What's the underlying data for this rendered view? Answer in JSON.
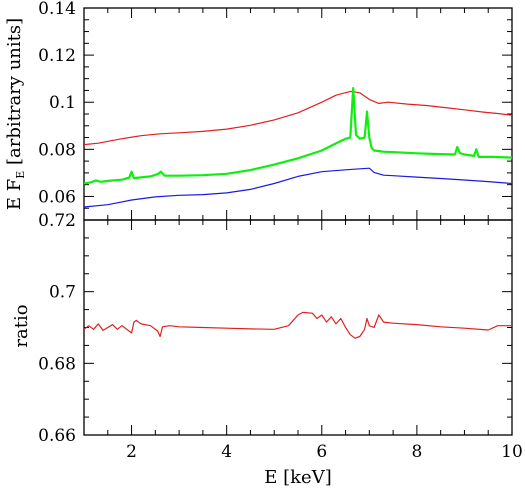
{
  "chart_data": [
    {
      "type": "line",
      "panel": "top",
      "ylabel": {
        "pre": "E F",
        "sub": "E",
        "post": " [arbitrary units]"
      },
      "xlim": [
        1,
        10
      ],
      "ylim": [
        0.05,
        0.14
      ],
      "yticks": [
        0.06,
        0.08,
        0.1,
        0.12,
        0.14
      ],
      "yticklabels": [
        "0.06",
        "0.08",
        "0.1",
        "0.12",
        "0.14"
      ],
      "series": [
        {
          "color": "#e02020",
          "x": [
            1,
            1.3,
            1.8,
            2.2,
            2.6,
            3,
            3.5,
            4,
            4.5,
            5,
            5.5,
            6,
            6.3,
            6.6,
            6.8,
            7,
            7.2,
            7.4,
            7.8,
            8.2,
            8.6,
            9,
            9.4,
            9.7,
            10
          ],
          "y": [
            0.082,
            0.0826,
            0.0845,
            0.0858,
            0.0866,
            0.087,
            0.0876,
            0.0886,
            0.0902,
            0.0925,
            0.0955,
            0.1,
            0.103,
            0.1046,
            0.104,
            0.1012,
            0.0995,
            0.1,
            0.0992,
            0.0986,
            0.0977,
            0.0968,
            0.0958,
            0.0952,
            0.0945
          ]
        },
        {
          "color": "#10ee10",
          "x": [
            1,
            1.15,
            1.25,
            1.35,
            1.5,
            1.8,
            1.95,
            2,
            2.05,
            2.4,
            2.55,
            2.62,
            2.7,
            3,
            3.5,
            4,
            4.5,
            5,
            5.5,
            6,
            6.3,
            6.5,
            6.6,
            6.66,
            6.72,
            6.8,
            6.9,
            6.95,
            7,
            7.05,
            7.1,
            7.3,
            7.6,
            8,
            8.4,
            8.8,
            8.85,
            8.9,
            9,
            9.2,
            9.25,
            9.3,
            9.6,
            10
          ],
          "y": [
            0.0655,
            0.066,
            0.0668,
            0.0662,
            0.0666,
            0.0671,
            0.068,
            0.0705,
            0.0678,
            0.0685,
            0.0695,
            0.0705,
            0.0688,
            0.0688,
            0.069,
            0.0696,
            0.0712,
            0.0735,
            0.0762,
            0.0795,
            0.0825,
            0.0845,
            0.085,
            0.106,
            0.0862,
            0.0845,
            0.085,
            0.096,
            0.085,
            0.0805,
            0.0795,
            0.079,
            0.0787,
            0.0783,
            0.078,
            0.0778,
            0.081,
            0.0785,
            0.0778,
            0.0772,
            0.08,
            0.0768,
            0.0768,
            0.0765
          ]
        },
        {
          "color": "#1a1ae0",
          "x": [
            1,
            1.5,
            2,
            2.5,
            3,
            3.5,
            4,
            4.5,
            5,
            5.5,
            6,
            6.5,
            7,
            7.1,
            7.3,
            7.5,
            8,
            8.5,
            9,
            9.5,
            10
          ],
          "y": [
            0.0555,
            0.0565,
            0.0585,
            0.0598,
            0.0605,
            0.0608,
            0.0615,
            0.063,
            0.0655,
            0.0685,
            0.0705,
            0.0713,
            0.072,
            0.0702,
            0.069,
            0.0688,
            0.0682,
            0.0676,
            0.067,
            0.0663,
            0.0655
          ]
        }
      ]
    },
    {
      "type": "line",
      "panel": "bottom",
      "xlabel": "E [keV]",
      "ylabel": "ratio",
      "xlim": [
        1,
        10
      ],
      "ylim": [
        0.66,
        0.72
      ],
      "xticks": [
        2,
        4,
        6,
        8,
        10
      ],
      "xticklabels": [
        "2",
        "4",
        "6",
        "8",
        "10"
      ],
      "yticks": [
        0.66,
        0.68,
        0.7,
        0.72
      ],
      "yticklabels": [
        "0.66",
        "0.68",
        "0.7",
        "0.72"
      ],
      "series": [
        {
          "color": "#e02020",
          "x": [
            1,
            1.1,
            1.2,
            1.3,
            1.4,
            1.5,
            1.6,
            1.7,
            1.8,
            1.9,
            2,
            2.05,
            2.1,
            2.2,
            2.4,
            2.55,
            2.6,
            2.65,
            2.8,
            3,
            3.5,
            4,
            4.5,
            5,
            5.3,
            5.5,
            5.6,
            5.8,
            5.9,
            6,
            6.1,
            6.2,
            6.3,
            6.4,
            6.5,
            6.6,
            6.7,
            6.8,
            6.9,
            6.95,
            7,
            7.1,
            7.2,
            7.3,
            7.5,
            8,
            8.5,
            9,
            9.5,
            9.7,
            10
          ],
          "y": [
            0.6895,
            0.6905,
            0.6895,
            0.691,
            0.6892,
            0.69,
            0.6908,
            0.6895,
            0.6905,
            0.6895,
            0.6885,
            0.6915,
            0.692,
            0.691,
            0.6905,
            0.689,
            0.6875,
            0.6902,
            0.6905,
            0.6902,
            0.69,
            0.6898,
            0.6896,
            0.6895,
            0.6905,
            0.6935,
            0.6942,
            0.694,
            0.6925,
            0.6935,
            0.6915,
            0.693,
            0.691,
            0.6925,
            0.69,
            0.688,
            0.687,
            0.6875,
            0.6895,
            0.6925,
            0.6905,
            0.69,
            0.6935,
            0.6915,
            0.6912,
            0.6908,
            0.6902,
            0.6898,
            0.6893,
            0.6905,
            0.6905
          ]
        }
      ]
    }
  ]
}
